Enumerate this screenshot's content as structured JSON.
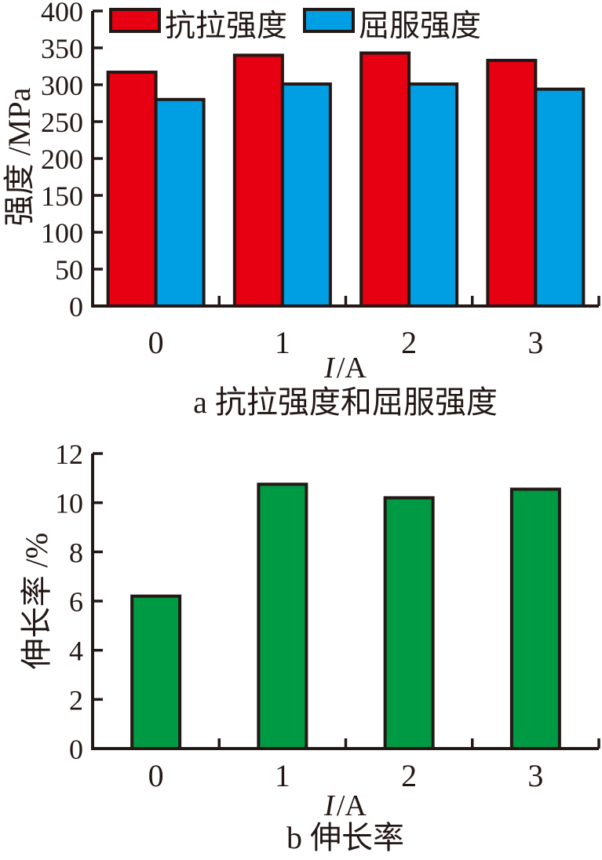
{
  "figure": {
    "background": "#ffffff",
    "ink": "#231815"
  },
  "chart_data": [
    {
      "type": "bar",
      "panel": "a",
      "caption": "a 抗拉强度和屈服强度",
      "xlabel_italic": "I",
      "xlabel_rest": "/A",
      "ylabel": "强度 /MPa",
      "categories": [
        "0",
        "1",
        "2",
        "3"
      ],
      "series": [
        {
          "name": "抗拉强度",
          "color": "#e60012",
          "values": [
            317,
            340,
            343,
            333
          ]
        },
        {
          "name": "屈服强度",
          "color": "#009fe3",
          "values": [
            280,
            301,
            301,
            294
          ]
        }
      ],
      "ylim": [
        0,
        400
      ],
      "ytick_step": 50,
      "legend_position": "top-inside",
      "grid": false,
      "bar_outline": "#231815"
    },
    {
      "type": "bar",
      "panel": "b",
      "caption": "b 伸长率",
      "xlabel_italic": "I",
      "xlabel_rest": "/A",
      "ylabel": "伸长率 /%",
      "categories": [
        "0",
        "1",
        "2",
        "3"
      ],
      "series": [
        {
          "name": "伸长率",
          "color": "#009944",
          "values": [
            6.2,
            10.75,
            10.2,
            10.55
          ]
        }
      ],
      "ylim": [
        0,
        12
      ],
      "ytick_step": 2,
      "legend_position": "none",
      "grid": false,
      "bar_outline": "#231815"
    }
  ]
}
